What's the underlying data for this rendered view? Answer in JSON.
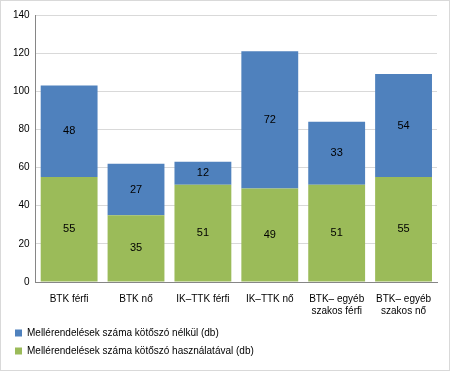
{
  "chart_data": {
    "type": "bar",
    "stacked": true,
    "categories": [
      "BTK férfi",
      "BTK nő",
      "IK–TTK férfi",
      "IK–TTK nő",
      "BTK– egyéb szakos férfi",
      "BTK– egyéb szakos nő"
    ],
    "series": [
      {
        "name": "Mellérendelések száma kötőszó használatával (db)",
        "color": "#9bbb59",
        "values": [
          55,
          35,
          51,
          49,
          51,
          55
        ]
      },
      {
        "name": "Mellérendelések száma kötőszó nélkül (db)",
        "color": "#4f81bd",
        "values": [
          48,
          27,
          12,
          72,
          33,
          54
        ]
      }
    ],
    "ylim": [
      0,
      140
    ],
    "yticks": [
      0,
      20,
      40,
      60,
      80,
      100,
      120,
      140
    ],
    "grid": true,
    "legend": "bottom",
    "data_labels": true
  }
}
